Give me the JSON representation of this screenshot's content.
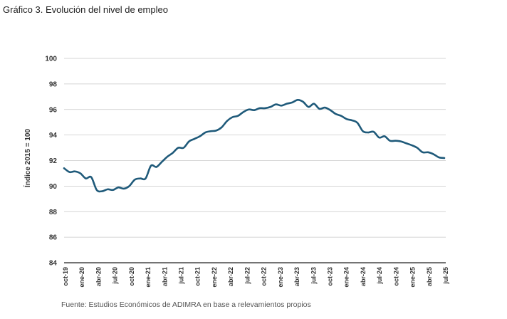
{
  "header": {
    "title": "Gráfico 3. Evolución del nivel de empleo"
  },
  "footer": {
    "source": "Fuente: Estudios Económicos de ADIMRA en base a relevamientos propios"
  },
  "chart_data": {
    "type": "line",
    "title": "Gráfico 3. Evolución del nivel de empleo",
    "xlabel": "",
    "ylabel": "Índice 2015 = 100",
    "ylim": [
      84,
      100
    ],
    "yticks": [
      84,
      86,
      88,
      90,
      92,
      94,
      96,
      98,
      100
    ],
    "grid": true,
    "line_color": "#1f5a7a",
    "x_tick_labels": [
      "oct-19",
      "ene-20",
      "abr-20",
      "jul-20",
      "oct-20",
      "ene-21",
      "abr-21",
      "jul-21",
      "oct-21",
      "ene-22",
      "abr-22",
      "jul-22",
      "oct-22",
      "ene-23",
      "abr-23",
      "jul-23",
      "oct-23",
      "ene-24",
      "abr-24",
      "jul-24",
      "oct-24",
      "ene-25",
      "abr-25",
      "jul-25"
    ],
    "series": [
      {
        "values": [
          91.4,
          91.1,
          91.15,
          91.0,
          90.6,
          90.7,
          89.7,
          89.6,
          89.75,
          89.7,
          89.9,
          89.8,
          90.0,
          90.5,
          90.6,
          90.6,
          91.6,
          91.5,
          91.9,
          92.3,
          92.6,
          93.0,
          93.0,
          93.5,
          93.7,
          93.9,
          94.2,
          94.3,
          94.35,
          94.6,
          95.1,
          95.4,
          95.5,
          95.8,
          96.0,
          95.95,
          96.1,
          96.1,
          96.2,
          96.4,
          96.3,
          96.45,
          96.55,
          96.75,
          96.6,
          96.2,
          96.45,
          96.05,
          96.15,
          95.95,
          95.65,
          95.5,
          95.25,
          95.15,
          94.95,
          94.3,
          94.2,
          94.25,
          93.8,
          93.9,
          93.55,
          93.55,
          93.5,
          93.35,
          93.2,
          93.0,
          92.65,
          92.65,
          92.5,
          92.25,
          92.2
        ]
      }
    ]
  }
}
